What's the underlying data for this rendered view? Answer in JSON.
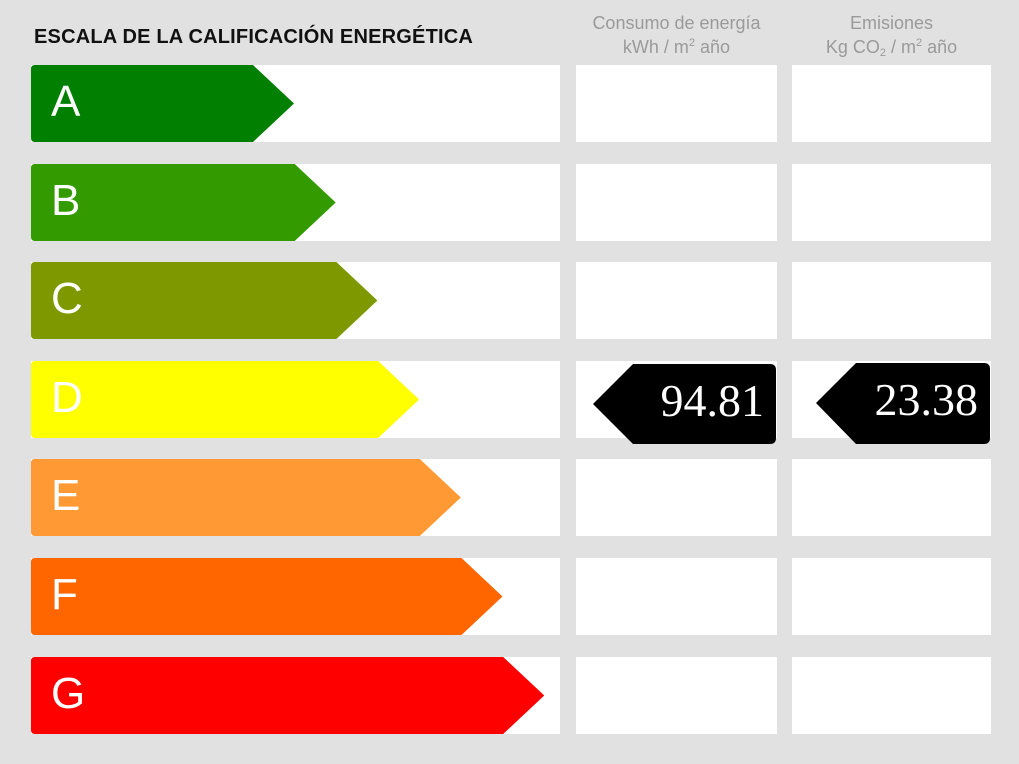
{
  "title": "ESCALA DE LA CALIFICACIÓN ENERGÉTICA",
  "columns": {
    "consumo": {
      "line1": "Consumo de energía",
      "unit_pre": "kWh / m",
      "unit_sup": "2",
      "unit_post": " año"
    },
    "emisiones": {
      "line1": "Emisiones",
      "unit_pre": "Kg CO",
      "unit_sub": "2",
      "unit_mid": " / m",
      "unit_sup": "2",
      "unit_post": " año"
    }
  },
  "ratings": [
    {
      "letter": "A",
      "color": "#007f00"
    },
    {
      "letter": "B",
      "color": "#339a00"
    },
    {
      "letter": "C",
      "color": "#7e9900"
    },
    {
      "letter": "D",
      "color": "#ffff00"
    },
    {
      "letter": "E",
      "color": "#ff9933"
    },
    {
      "letter": "F",
      "color": "#ff6600"
    },
    {
      "letter": "G",
      "color": "#ff0000"
    }
  ],
  "current_rating": "D",
  "consumo_value": "94.81",
  "emisiones_value": "23.38"
}
